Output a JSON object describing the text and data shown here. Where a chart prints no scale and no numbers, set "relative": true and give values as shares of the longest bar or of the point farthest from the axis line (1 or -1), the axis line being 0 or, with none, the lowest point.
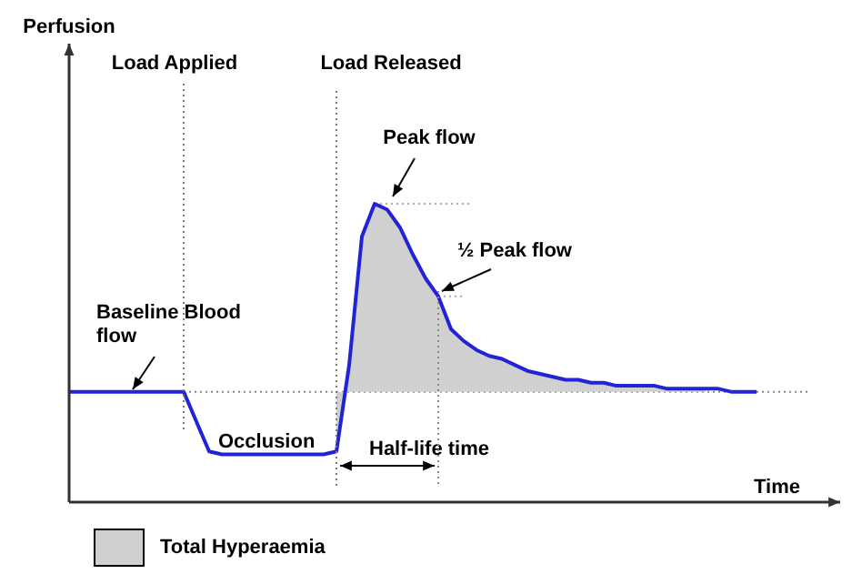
{
  "chart_data": {
    "type": "line",
    "relative": true,
    "xlabel": "Time",
    "tick_labels": false,
    "legend": "bottom left",
    "marker": "none",
    "line_style": "solid",
    "categories": [
      null,
      null,
      null,
      null,
      null,
      null,
      null,
      null,
      null,
      null,
      null,
      null,
      null,
      null,
      null,
      null,
      null,
      null,
      null,
      null,
      null,
      null,
      null,
      null,
      null,
      null,
      null,
      null,
      null,
      null,
      null,
      null,
      null,
      null,
      null,
      null,
      null,
      null,
      null,
      null,
      null,
      null,
      null,
      null,
      null,
      null,
      null,
      null,
      null,
      null,
      null,
      null,
      null,
      null,
      null
    ],
    "series": [
      {
        "color": "#2323d6",
        "values": [
          0.37,
          0.37,
          0.37,
          0.37,
          0.37,
          0.37,
          0.37,
          0.37,
          0.37,
          0.37,
          0.27,
          0.17,
          0.16,
          0.16,
          0.16,
          0.16,
          0.16,
          0.16,
          0.16,
          0.16,
          0.16,
          0.17,
          0.46,
          0.89,
          1,
          0.98,
          0.92,
          0.83,
          0.75,
          0.69,
          0.58,
          0.54,
          0.51,
          0.49,
          0.48,
          0.46,
          0.44,
          0.43,
          0.42,
          0.41,
          0.41,
          0.4,
          0.4,
          0.39,
          0.39,
          0.39,
          0.39,
          0.38,
          0.38,
          0.38,
          0.38,
          0.38,
          0.37,
          0.37,
          0.37
        ]
      },
      {
        "type": "area",
        "name": "Total Hyperaemia",
        "color": "#d0d0d0",
        "values": [
          null,
          null,
          null,
          null,
          null,
          null,
          null,
          null,
          null,
          null,
          null,
          null,
          null,
          null,
          null,
          null,
          null,
          null,
          null,
          null,
          null,
          0.17,
          0.46,
          0.89,
          1,
          0.98,
          0.92,
          0.83,
          0.75,
          0.69,
          0.58,
          0.54,
          0.51,
          0.49,
          0.48,
          0.46,
          0.44,
          0.43,
          0.42,
          0.41,
          0.41,
          0.4,
          0.4,
          0.39,
          0.39,
          0.39,
          0.39,
          0.38,
          0.38,
          0.38,
          0.38,
          null,
          null,
          null,
          null
        ]
      }
    ],
    "ref_lines": [
      {
        "axis": "y",
        "value": 0.37,
        "line_style": "dotted",
        "color": "#888888"
      },
      {
        "axis": "y",
        "value": 1,
        "line_style": "dotted",
        "color": "#aaaaaa"
      },
      {
        "axis": "y",
        "value": 0.69,
        "line_style": "dotted",
        "color": "#aaaaaa"
      }
    ],
    "annotations": [
      "Peak flow",
      "½ Peak flow",
      "Baseline Blood flow",
      "Occlusion",
      "Half-life time",
      "Load Applied",
      "Load Released",
      "Perfusion"
    ]
  }
}
